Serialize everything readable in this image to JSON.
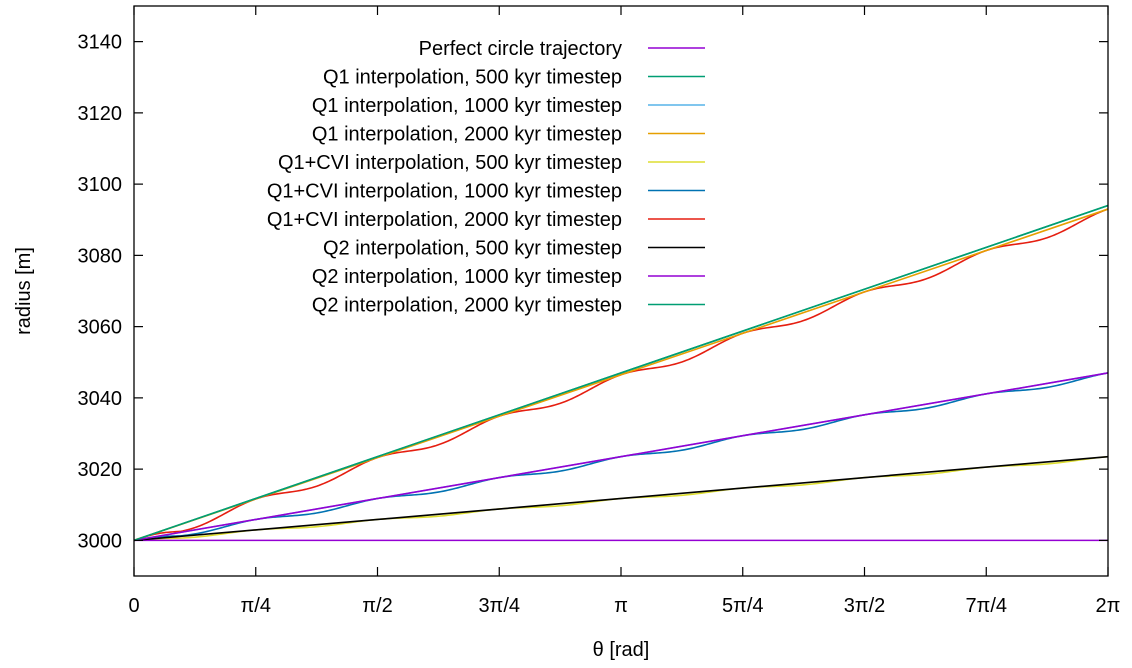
{
  "chart_data": {
    "type": "line",
    "title": "",
    "xlabel": "θ [rad]",
    "ylabel": "radius [m]",
    "xlim": [
      0,
      6.283185307
    ],
    "ylim": [
      2990,
      3150
    ],
    "x_ticks": [
      {
        "value": 0,
        "label": "0"
      },
      {
        "value": 0.785398163,
        "label": "π/4"
      },
      {
        "value": 1.570796327,
        "label": "π/2"
      },
      {
        "value": 2.35619449,
        "label": "3π/4"
      },
      {
        "value": 3.141592654,
        "label": "π"
      },
      {
        "value": 3.926990817,
        "label": "5π/4"
      },
      {
        "value": 4.71238898,
        "label": "3π/2"
      },
      {
        "value": 5.497787144,
        "label": "7π/4"
      },
      {
        "value": 6.283185307,
        "label": "2π"
      }
    ],
    "y_ticks": [
      {
        "value": 3000,
        "label": "3000"
      },
      {
        "value": 3020,
        "label": "3020"
      },
      {
        "value": 3040,
        "label": "3040"
      },
      {
        "value": 3060,
        "label": "3060"
      },
      {
        "value": 3080,
        "label": "3080"
      },
      {
        "value": 3100,
        "label": "3100"
      },
      {
        "value": 3120,
        "label": "3120"
      },
      {
        "value": 3140,
        "label": "3140"
      }
    ],
    "grid": false,
    "legend_position": "top-center",
    "series": [
      {
        "name": "Perfect circle trajectory",
        "color": "#9400d3",
        "style": "smooth",
        "x": [
          0,
          6.283185307
        ],
        "y": [
          3000,
          3000
        ]
      },
      {
        "name": "Q1 interpolation, 500 kyr timestep",
        "color": "#009e73",
        "style": "smooth",
        "x": [
          0,
          6.283185307
        ],
        "y": [
          3000,
          3094
        ]
      },
      {
        "name": "Q1 interpolation, 1000 kyr timestep",
        "color": "#56b4e9",
        "style": "smooth",
        "x": [
          0,
          6.283185307
        ],
        "y": [
          3000,
          3047
        ]
      },
      {
        "name": "Q1 interpolation, 2000 kyr timestep",
        "color": "#e69f00",
        "style": "smooth",
        "x": [
          0,
          6.283185307
        ],
        "y": [
          3000,
          3093
        ]
      },
      {
        "name": "Q1+CVI interpolation, 500 kyr timestep",
        "color": "#dede30",
        "style": "wavy",
        "x": [
          0,
          6.283185307
        ],
        "y": [
          3000,
          3023.5
        ]
      },
      {
        "name": "Q1+CVI interpolation, 1000 kyr timestep",
        "color": "#0072b2",
        "style": "wavy",
        "x": [
          0,
          6.283185307
        ],
        "y": [
          3000,
          3047
        ]
      },
      {
        "name": "Q1+CVI interpolation, 2000 kyr timestep",
        "color": "#e51e10",
        "style": "wavy",
        "x": [
          0,
          6.283185307
        ],
        "y": [
          3000,
          3093
        ]
      },
      {
        "name": "Q2 interpolation, 500 kyr timestep",
        "color": "#000000",
        "style": "smooth",
        "x": [
          0,
          6.283185307
        ],
        "y": [
          3000,
          3023.5
        ]
      },
      {
        "name": "Q2 interpolation, 1000 kyr timestep",
        "color": "#9400d3",
        "style": "smooth",
        "x": [
          0,
          6.283185307
        ],
        "y": [
          3000,
          3047
        ]
      },
      {
        "name": "Q2 interpolation, 2000 kyr timestep",
        "color": "#009e73",
        "style": "smooth",
        "x": [
          0,
          6.283185307
        ],
        "y": [
          3000,
          3094
        ]
      }
    ]
  }
}
